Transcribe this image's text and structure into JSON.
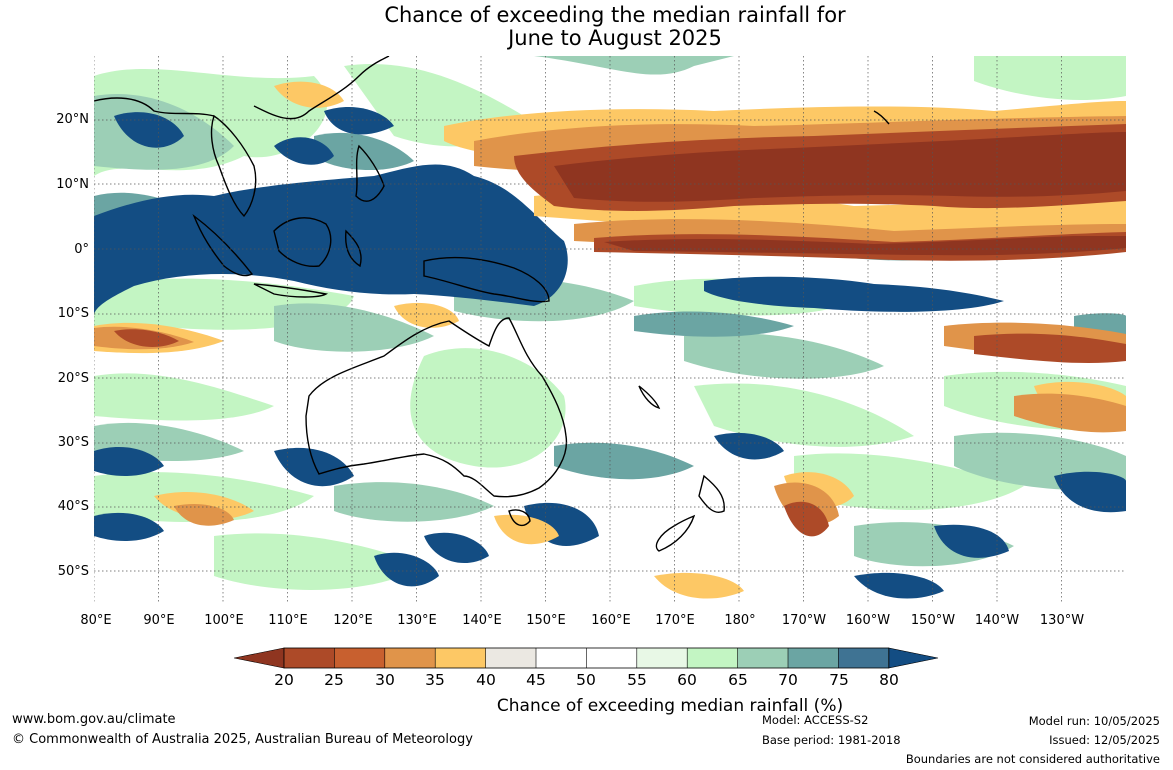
{
  "title": {
    "line1": "Chance of exceeding the median rainfall for",
    "line2": "June to August 2025"
  },
  "map": {
    "lat_labels": [
      "20°N",
      "10°N",
      "0°",
      "10°S",
      "20°S",
      "30°S",
      "40°S",
      "50°S"
    ],
    "lon_labels": [
      "80°E",
      "90°E",
      "100°E",
      "110°E",
      "120°E",
      "130°E",
      "140°E",
      "150°E",
      "160°E",
      "170°E",
      "180°",
      "170°W",
      "160°W",
      "150°W",
      "140°W",
      "130°W"
    ]
  },
  "legend": {
    "title": "Chance of exceeding median rainfall (%)",
    "ticks": [
      "20",
      "25",
      "30",
      "35",
      "40",
      "45",
      "50",
      "55",
      "60",
      "65",
      "70",
      "75",
      "80"
    ],
    "colors": {
      "below20": "#8f3520",
      "c20_25": "#ad4a28",
      "c25_30": "#c8602f",
      "c30_35": "#e0944a",
      "c35_40": "#fdc865",
      "c40_45": "#ebe8e2",
      "c45_50": "#ffffff",
      "c50_55": "#ffffff",
      "c55_60": "#e8f8e6",
      "c60_65": "#c3f5c3",
      "c65_70": "#9ccfb6",
      "c70_75": "#6ba5a3",
      "c75_80": "#3f7393",
      "above80": "#134d83"
    }
  },
  "footer": {
    "website": "www.bom.gov.au/climate",
    "copyright": "© Commonwealth of Australia 2025, Australian Bureau of Meteorology",
    "model": "Model: ACCESS-S2",
    "base_period": "Base period: 1981-2018",
    "model_run": "Model run: 10/05/2025",
    "issued": "Issued: 12/05/2025",
    "disclaimer": "Boundaries are not considered authoritative"
  }
}
